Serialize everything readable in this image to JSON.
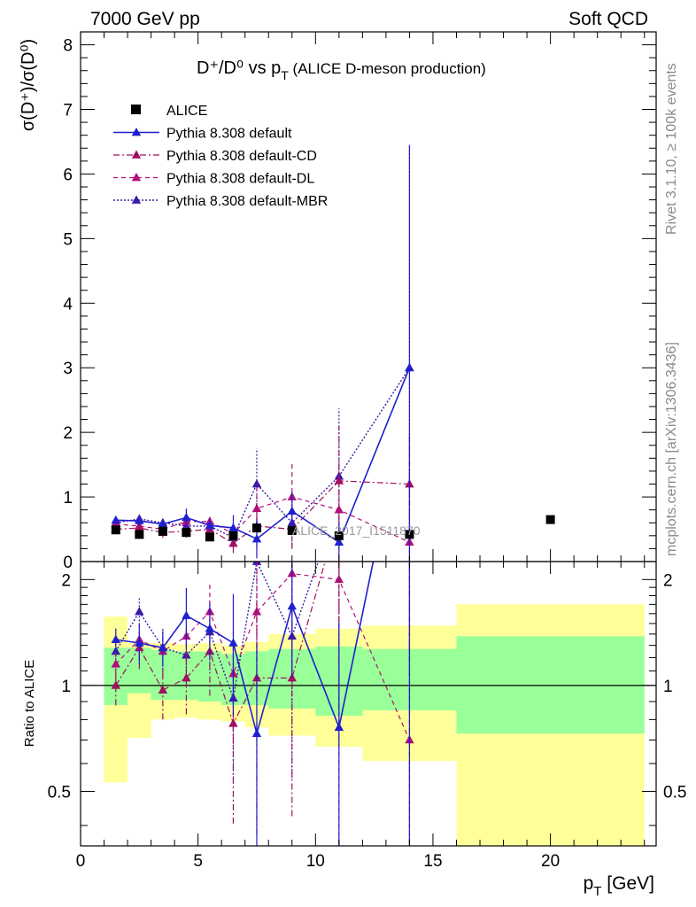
{
  "header": {
    "left": "7000 GeV pp",
    "right": "Soft QCD"
  },
  "title": {
    "main": "D⁺/D⁰ vs p",
    "main_sub": "T",
    "aside": " (ALICE D-meson production)"
  },
  "ylabel_main": "σ(D⁺)/σ(D⁰)",
  "ylabel_ratio": "Ratio to ALICE",
  "xlabel": "p",
  "xlabel_sub": "T",
  "xlabel_unit": " [GeV]",
  "watermark": "ALICE_2017_I1511870",
  "side_text_top": "Rivet 3.1.10, ≥ 100k events",
  "side_text_bottom": "mcplots.cern.ch [arXiv:1306.3436]",
  "colors": {
    "data": "#000000",
    "default": "#1f1fcf",
    "cd": "#a01060",
    "dl": "#b0107a",
    "mbr": "#3a1aa8",
    "band_inner": "#99ff99",
    "band_outer": "#ffff99"
  },
  "chart_data": {
    "type": "scatter",
    "xlim": [
      0,
      24.5
    ],
    "ylim": [
      0,
      8.2
    ],
    "ratio_ylim": [
      0.35,
      2.25
    ],
    "x_ticks": [
      0,
      5,
      10,
      15,
      20
    ],
    "y_ticks": [
      0,
      1,
      2,
      3,
      4,
      5,
      6,
      7,
      8
    ],
    "ratio_ticks": [
      0.5,
      1,
      2
    ],
    "ratio_tick_labels": [
      "0.5",
      "1",
      "2"
    ],
    "x": [
      1.5,
      2.5,
      3.5,
      4.5,
      5.5,
      6.5,
      7.5,
      9.0,
      11.0,
      14.0,
      20.0
    ],
    "x_edges": [
      1,
      2,
      3,
      4,
      5,
      6,
      7,
      8,
      10,
      12,
      16,
      24
    ],
    "series": [
      {
        "name": "ALICE",
        "key": "data",
        "y": [
          0.49,
          0.42,
          0.47,
          0.45,
          0.38,
          0.4,
          0.52,
          0.48,
          0.4,
          0.42,
          0.65
        ]
      },
      {
        "name": "Pythia 8.308 default",
        "key": "default",
        "y": [
          0.64,
          0.63,
          0.58,
          0.68,
          0.56,
          0.52,
          0.35,
          0.78,
          0.3,
          3.0
        ],
        "err": [
          0.05,
          0.07,
          0.07,
          0.14,
          0.1,
          0.2,
          0.3,
          0.3,
          0.3,
          3.45
        ],
        "ratio": [
          1.35,
          1.32,
          1.28,
          1.58,
          1.45,
          1.32,
          0.73,
          1.68,
          0.76,
          7.1
        ]
      },
      {
        "name": "Pythia 8.308 default-CD",
        "key": "cd",
        "y": [
          0.5,
          0.52,
          0.45,
          0.47,
          0.5,
          0.28,
          0.55,
          0.5,
          1.25,
          1.2
        ],
        "err": [
          0.06,
          0.07,
          0.08,
          0.1,
          0.12,
          0.15,
          0.35,
          0.3,
          0.85,
          0.75
        ],
        "ratio": [
          1.0,
          1.28,
          0.97,
          1.05,
          1.25,
          0.78,
          1.05,
          1.05,
          3.1,
          2.85
        ]
      },
      {
        "name": "Pythia 8.308 default-DL",
        "key": "dl",
        "y": [
          0.58,
          0.55,
          0.5,
          0.62,
          0.62,
          0.43,
          0.82,
          1.0,
          0.8,
          0.3
        ],
        "err": [
          0.06,
          0.07,
          0.08,
          0.1,
          0.12,
          0.15,
          0.35,
          0.55,
          0.75,
          1.65
        ],
        "ratio": [
          1.15,
          1.35,
          1.25,
          1.38,
          1.62,
          1.08,
          1.62,
          2.08,
          2.0,
          0.7
        ]
      },
      {
        "name": "Pythia 8.308 default-MBR",
        "key": "mbr",
        "y": [
          0.6,
          0.66,
          0.6,
          0.55,
          0.55,
          0.37,
          1.2,
          0.6,
          1.32,
          3.0
        ],
        "err": [
          0.06,
          0.07,
          0.08,
          0.1,
          0.12,
          0.15,
          0.55,
          0.4,
          1.05,
          3.45
        ],
        "ratio": [
          1.25,
          1.62,
          1.28,
          1.22,
          1.42,
          0.92,
          2.25,
          1.38,
          3.3,
          7.1
        ]
      }
    ],
    "band_inner_ratio": [
      [
        0.88,
        1.28
      ],
      [
        0.95,
        1.28
      ],
      [
        0.91,
        1.26
      ],
      [
        0.91,
        1.25
      ],
      [
        0.9,
        1.25
      ],
      [
        0.88,
        1.23
      ],
      [
        0.88,
        1.25
      ],
      [
        0.86,
        1.27
      ],
      [
        0.82,
        1.29
      ],
      [
        0.85,
        1.27
      ],
      [
        0.73,
        1.38
      ]
    ],
    "band_outer_ratio": [
      [
        0.53,
        1.57
      ],
      [
        0.71,
        1.32
      ],
      [
        0.8,
        1.32
      ],
      [
        0.81,
        1.31
      ],
      [
        0.8,
        1.32
      ],
      [
        0.79,
        1.3
      ],
      [
        0.76,
        1.33
      ],
      [
        0.72,
        1.4
      ],
      [
        0.67,
        1.45
      ],
      [
        0.61,
        1.48
      ],
      [
        0.3,
        1.7
      ]
    ]
  }
}
